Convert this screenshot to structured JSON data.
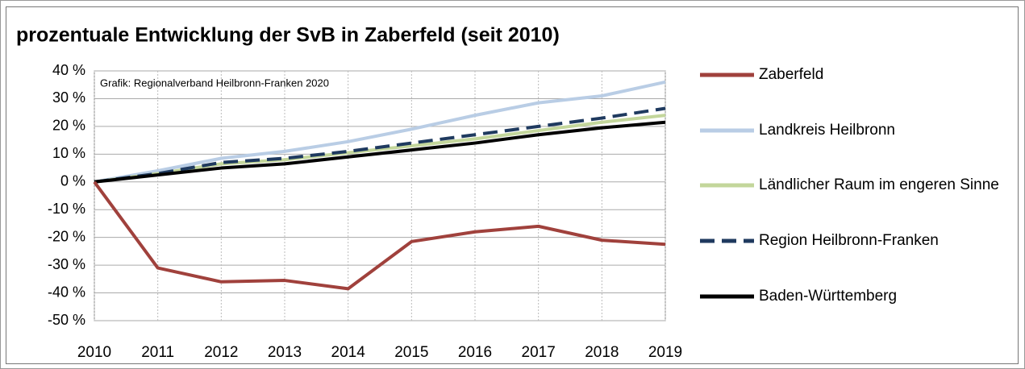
{
  "chart_data": {
    "type": "line",
    "title": "prozentuale Entwicklung der SvB in Zaberfeld (seit 2010)",
    "annotation": "Grafik: Regionalverband Heilbronn-Franken 2020",
    "categories": [
      "2010",
      "2011",
      "2012",
      "2013",
      "2014",
      "2015",
      "2016",
      "2017",
      "2018",
      "2019"
    ],
    "series": [
      {
        "name": "Zaberfeld",
        "color": "#a0413c",
        "dashed": false,
        "values": [
          0,
          -31,
          -36,
          -35.5,
          -38.5,
          -21.5,
          -18,
          -16,
          -21,
          -22.5
        ]
      },
      {
        "name": "Landkreis Heilbronn",
        "color": "#b9cde5",
        "dashed": false,
        "values": [
          0,
          4,
          8.5,
          11,
          14.5,
          19,
          24,
          28.5,
          31,
          36
        ]
      },
      {
        "name": "Ländlicher Raum im engeren Sinne",
        "color": "#c3d69b",
        "dashed": false,
        "values": [
          0,
          3,
          6.5,
          8,
          10.5,
          13,
          15.5,
          18.5,
          21.5,
          24
        ]
      },
      {
        "name": "Region Heilbronn-Franken",
        "color": "#1f3a5f",
        "dashed": true,
        "values": [
          0,
          3,
          7,
          8.5,
          11,
          14,
          17,
          20,
          23,
          26.5
        ]
      },
      {
        "name": "Baden-Württemberg",
        "color": "#000000",
        "dashed": false,
        "values": [
          0,
          2.5,
          5,
          6.5,
          9,
          11.5,
          14,
          17,
          19.5,
          21.5
        ]
      }
    ],
    "ylim": [
      -50,
      40
    ],
    "yticks": [
      {
        "value": -50,
        "label": "-50 %"
      },
      {
        "value": -40,
        "label": "-40 %"
      },
      {
        "value": -30,
        "label": "-30 %"
      },
      {
        "value": -20,
        "label": "-20 %"
      },
      {
        "value": -10,
        "label": "-10 %"
      },
      {
        "value": 0,
        "label": "0 %"
      },
      {
        "value": 10,
        "label": "10 %"
      },
      {
        "value": 20,
        "label": "20 %"
      },
      {
        "value": 30,
        "label": "30 %"
      },
      {
        "value": 40,
        "label": "40 %"
      }
    ],
    "grid": true,
    "legend": "right"
  }
}
